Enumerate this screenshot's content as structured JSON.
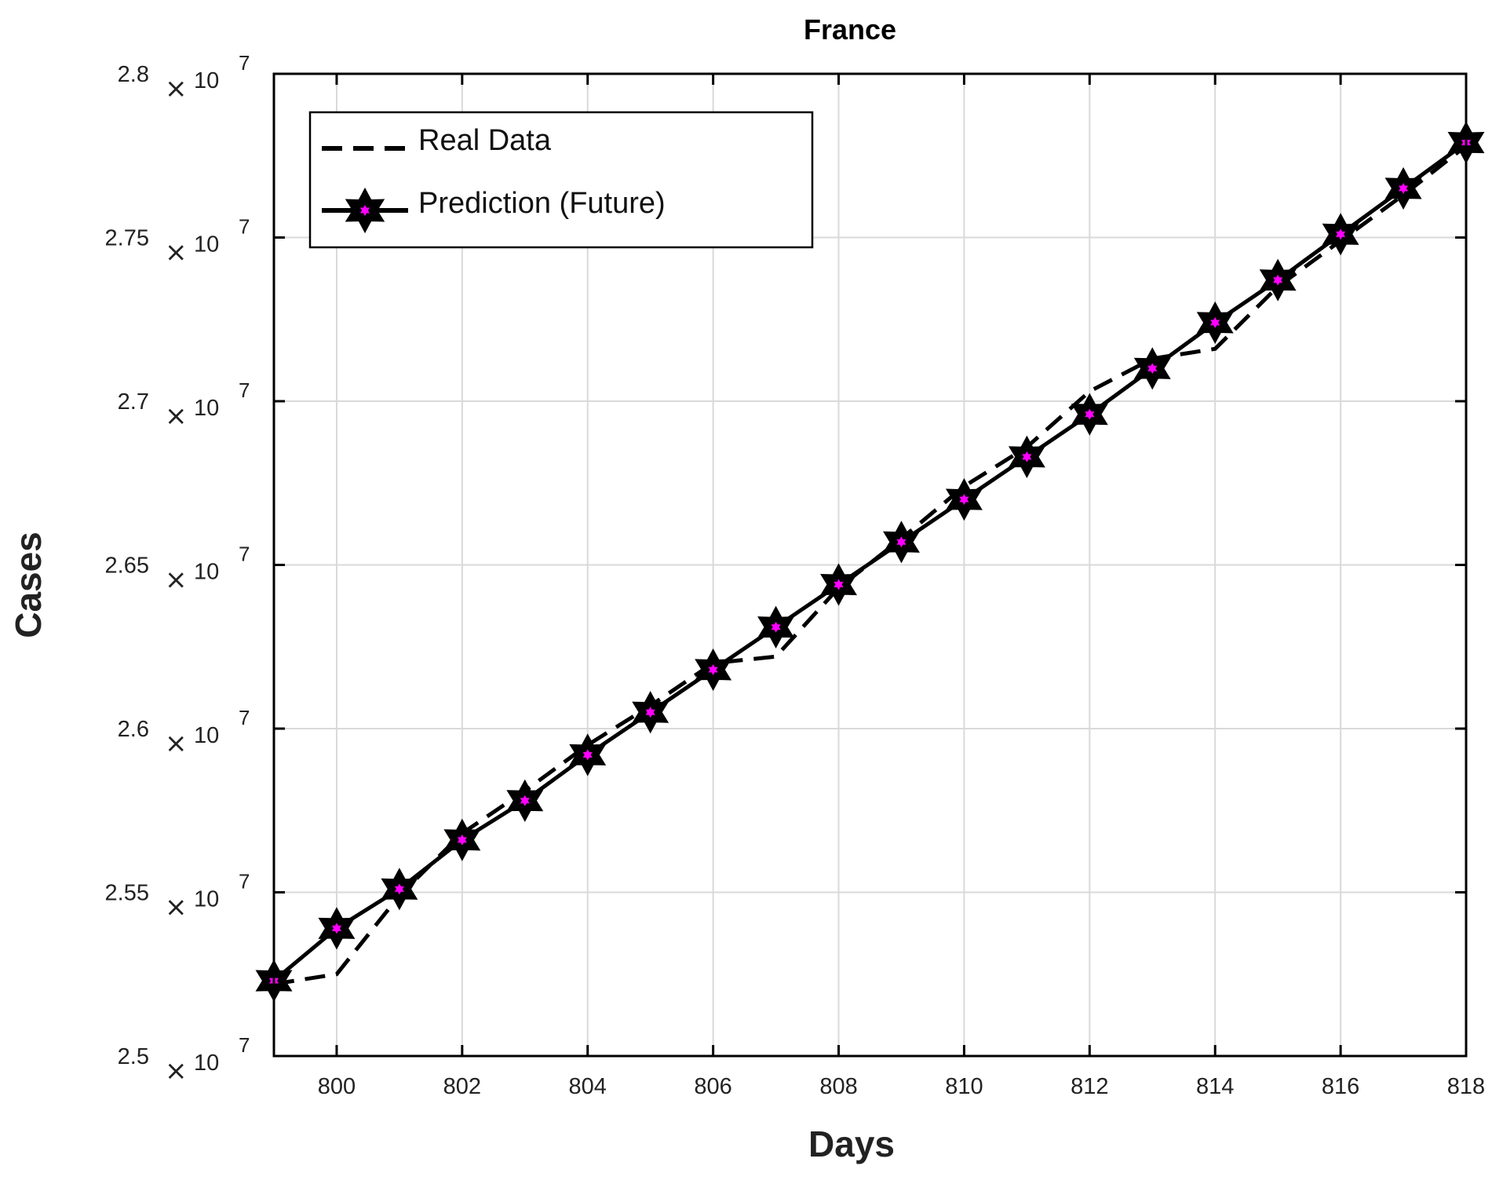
{
  "chart_data": {
    "type": "line",
    "title": "France",
    "xlabel": "Days",
    "ylabel": "Cases",
    "xlim": [
      799,
      818
    ],
    "ylim": [
      25000000,
      28000000
    ],
    "x_ticks": [
      800,
      802,
      804,
      806,
      808,
      810,
      812,
      814,
      816,
      818
    ],
    "x_tick_labels": [
      "800",
      "802",
      "804",
      "806",
      "808",
      "810",
      "812",
      "814",
      "816",
      "818"
    ],
    "y_ticks": [
      25000000,
      25500000,
      26000000,
      26500000,
      27000000,
      27500000,
      28000000
    ],
    "y_tick_labels": [
      "2.5",
      "2.55",
      "2.6",
      "2.65",
      "2.7",
      "2.75",
      "2.8"
    ],
    "y_exponent": {
      "times": "×",
      "base": "10",
      "power": "7"
    },
    "grid": true,
    "legend_position": "top-left",
    "x": [
      799,
      800,
      801,
      802,
      803,
      804,
      805,
      806,
      807,
      808,
      809,
      810,
      811,
      812,
      813,
      814,
      815,
      816,
      817,
      818
    ],
    "series": [
      {
        "name": "Real Data",
        "style": "dashed",
        "color": "#000000",
        "values": [
          25220000,
          25250000,
          25490000,
          25680000,
          25810000,
          25950000,
          26070000,
          26200000,
          26220000,
          26430000,
          26580000,
          26740000,
          26860000,
          27030000,
          27130000,
          27160000,
          27350000,
          27490000,
          27630000,
          27780000
        ]
      },
      {
        "name": "Prediction (Future)",
        "style": "solid-star",
        "color": "#000000",
        "marker_fill": "#000000",
        "marker_center": "#ff00ff",
        "values": [
          25230000,
          25390000,
          25510000,
          25660000,
          25780000,
          25920000,
          26050000,
          26180000,
          26310000,
          26440000,
          26570000,
          26700000,
          26830000,
          26960000,
          27100000,
          27240000,
          27370000,
          27510000,
          27650000,
          27790000
        ]
      }
    ]
  }
}
